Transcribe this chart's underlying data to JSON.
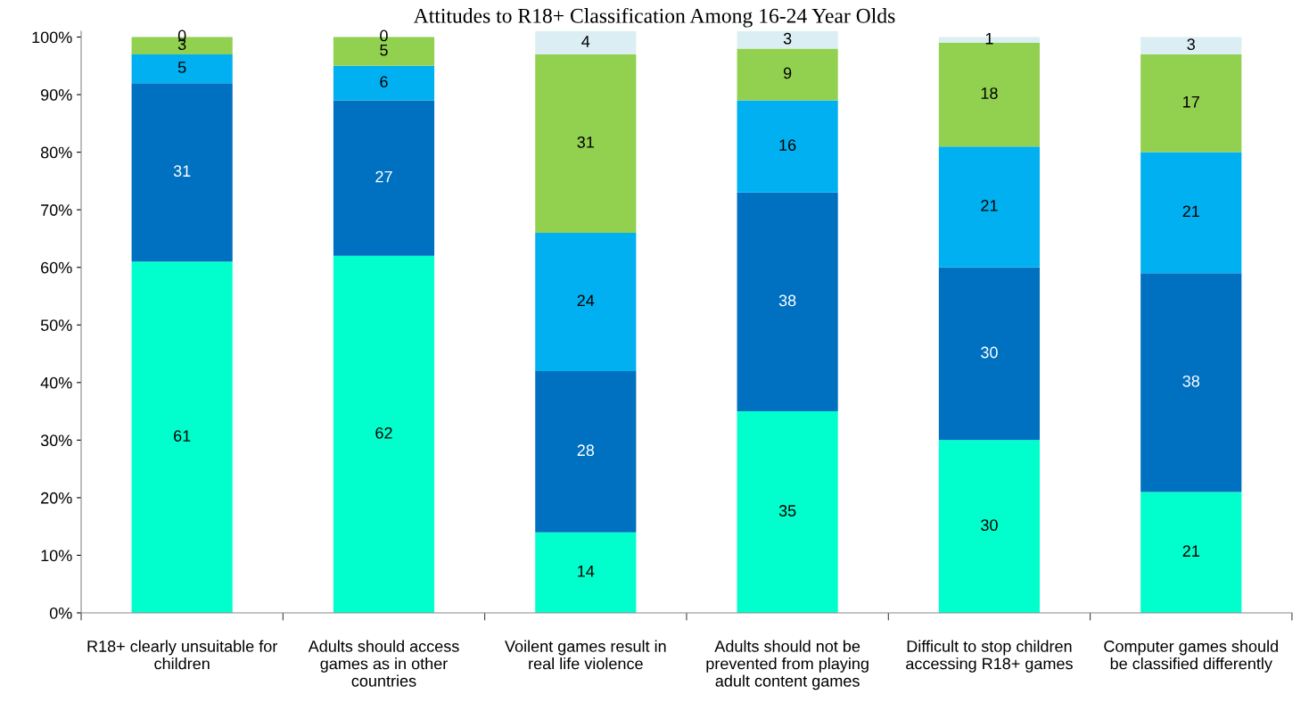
{
  "chart_data": {
    "type": "bar",
    "title": "Attitudes to R18+ Classification Among 16-24 Year Olds",
    "categories": [
      "R18+ clearly unsuitable for children",
      "Adults should access games as in other countries",
      "Voilent games result in real life violence",
      "Adults should not be prevented from playing adult content games",
      "Difficult to stop children accessing R18+ games",
      "Computer games should be classified differently"
    ],
    "stacked": true,
    "series": [
      {
        "color": "#00ffcc",
        "values": [
          61,
          62,
          14,
          35,
          30,
          21
        ]
      },
      {
        "color": "#0070c0",
        "values": [
          31,
          27,
          28,
          38,
          30,
          38
        ]
      },
      {
        "color": "#00b0f0",
        "values": [
          5,
          6,
          24,
          16,
          21,
          21
        ]
      },
      {
        "color": "#92d050",
        "values": [
          3,
          5,
          31,
          9,
          18,
          17
        ]
      },
      {
        "color": "#daeef3",
        "values": [
          0,
          0,
          4,
          3,
          1,
          3
        ]
      }
    ],
    "ylim": [
      0,
      101
    ],
    "yticks": [
      {
        "value": 0,
        "label": "0%"
      },
      {
        "value": 10,
        "label": "10%"
      },
      {
        "value": 20,
        "label": "20%"
      },
      {
        "value": 30,
        "label": "30%"
      },
      {
        "value": 40,
        "label": "40%"
      },
      {
        "value": 50,
        "label": "50%"
      },
      {
        "value": 60,
        "label": "60%"
      },
      {
        "value": 70,
        "label": "70%"
      },
      {
        "value": 80,
        "label": "80%"
      },
      {
        "value": 90,
        "label": "90%"
      },
      {
        "value": 100,
        "label": "100%"
      }
    ],
    "grid": false,
    "legend": false,
    "data_labels": true
  }
}
